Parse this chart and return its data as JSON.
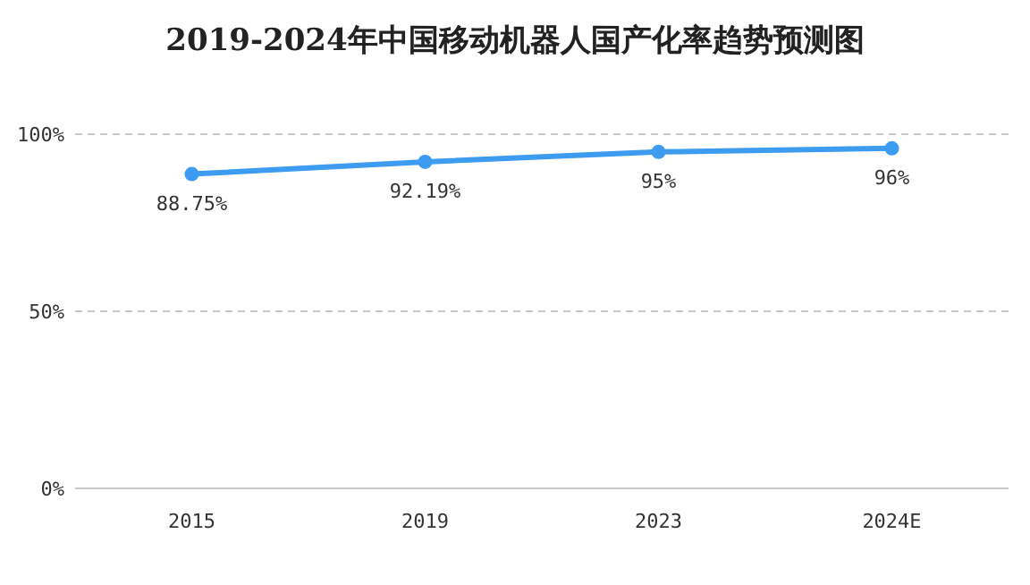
{
  "chart_data": {
    "type": "line",
    "title": "2019-2024年中国移动机器人国产化率趋势预测图",
    "categories": [
      "2015",
      "2019",
      "2023",
      "2024E"
    ],
    "series": [
      {
        "color": "#3d9bf0",
        "values": [
          88.75,
          92.19,
          95,
          96
        ],
        "value_labels": [
          "88.75%",
          "92.19%",
          "95%",
          "96%"
        ]
      }
    ],
    "ylim": [
      0,
      100
    ],
    "yticks": [
      {
        "value": 0,
        "label": "0%"
      },
      {
        "value": 50,
        "label": "50%"
      },
      {
        "value": 100,
        "label": "100%"
      }
    ],
    "grid": "y",
    "marker": "circle",
    "line_style": "solid"
  }
}
